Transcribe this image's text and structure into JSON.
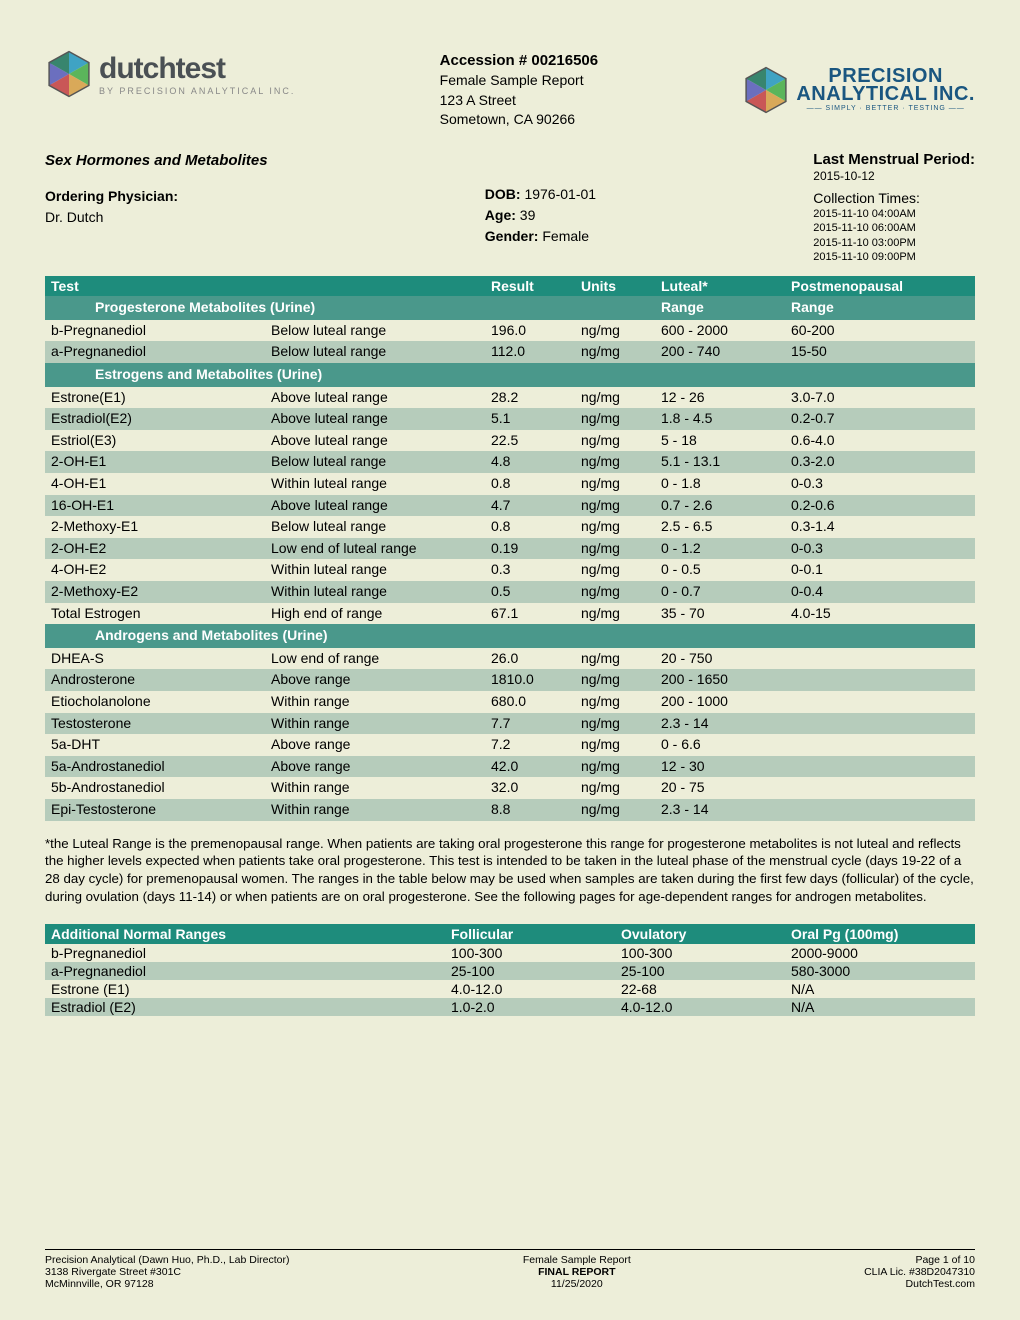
{
  "header": {
    "accession": "Accession # 00216506",
    "report_type": "Female Sample Report",
    "address1": "123 A Street",
    "address2": "Sometown, CA 90266"
  },
  "info": {
    "section_title": "Sex Hormones and Metabolites",
    "physician_label": "Ordering Physician:",
    "physician_name": "Dr. Dutch",
    "dob_label": "DOB:",
    "dob": "1976-01-01",
    "age_label": "Age:",
    "age": "39",
    "gender_label": "Gender:",
    "gender": "Female",
    "lmp_label": "Last Menstrual Period:",
    "lmp_date": "2015-10-12",
    "ct_label": "Collection Times:",
    "ct": [
      "2015-11-10 04:00AM",
      "2015-11-10 06:00AM",
      "2015-11-10 03:00PM",
      "2015-11-10 09:00PM"
    ]
  },
  "table_headers": {
    "test": "Test",
    "result": "Result",
    "units": "Units",
    "range1": "Luteal*",
    "range2": "Postmenopausal"
  },
  "sections": [
    {
      "title": "Progesterone Metabolites (Urine)",
      "sub1": "Range",
      "sub2": "Range",
      "rows": [
        {
          "test": "b-Pregnanediol",
          "status": "Below luteal range",
          "result": "196.0",
          "units": "ng/mg",
          "r1": "600 - 2000",
          "r2": "60-200"
        },
        {
          "test": "a-Pregnanediol",
          "status": "Below luteal range",
          "result": "112.0",
          "units": "ng/mg",
          "r1": "200 - 740",
          "r2": "15-50"
        }
      ]
    },
    {
      "title": "Estrogens and Metabolites (Urine)",
      "rows": [
        {
          "test": "Estrone(E1)",
          "status": "Above luteal range",
          "result": "28.2",
          "units": "ng/mg",
          "r1": "12 - 26",
          "r2": "3.0-7.0"
        },
        {
          "test": "Estradiol(E2)",
          "status": "Above luteal range",
          "result": "5.1",
          "units": "ng/mg",
          "r1": "1.8 - 4.5",
          "r2": "0.2-0.7"
        },
        {
          "test": "Estriol(E3)",
          "status": "Above luteal range",
          "result": "22.5",
          "units": "ng/mg",
          "r1": "5 - 18",
          "r2": "0.6-4.0"
        },
        {
          "test": "2-OH-E1",
          "status": "Below luteal range",
          "result": "4.8",
          "units": "ng/mg",
          "r1": "5.1 - 13.1",
          "r2": "0.3-2.0"
        },
        {
          "test": "4-OH-E1",
          "status": "Within luteal range",
          "result": "0.8",
          "units": "ng/mg",
          "r1": "0 - 1.8",
          "r2": "0-0.3"
        },
        {
          "test": "16-OH-E1",
          "status": "Above luteal range",
          "result": "4.7",
          "units": "ng/mg",
          "r1": "0.7 - 2.6",
          "r2": "0.2-0.6"
        },
        {
          "test": "2-Methoxy-E1",
          "status": "Below luteal range",
          "result": "0.8",
          "units": "ng/mg",
          "r1": "2.5 - 6.5",
          "r2": "0.3-1.4"
        },
        {
          "test": "2-OH-E2",
          "status": "Low end of luteal range",
          "result": "0.19",
          "units": "ng/mg",
          "r1": "0 - 1.2",
          "r2": "0-0.3"
        },
        {
          "test": "4-OH-E2",
          "status": "Within luteal range",
          "result": "0.3",
          "units": "ng/mg",
          "r1": "0 - 0.5",
          "r2": "0-0.1"
        },
        {
          "test": "2-Methoxy-E2",
          "status": "Within luteal range",
          "result": "0.5",
          "units": "ng/mg",
          "r1": "0 - 0.7",
          "r2": "0-0.4"
        },
        {
          "test": "Total Estrogen",
          "status": "High end of range",
          "result": "67.1",
          "units": "ng/mg",
          "r1": "35 - 70",
          "r2": "4.0-15"
        }
      ]
    },
    {
      "title": "Androgens and Metabolites (Urine)",
      "rows": [
        {
          "test": "DHEA-S",
          "status": "Low end of range",
          "result": "26.0",
          "units": "ng/mg",
          "r1": "20 - 750",
          "r2": ""
        },
        {
          "test": "Androsterone",
          "status": "Above range",
          "result": "1810.0",
          "units": "ng/mg",
          "r1": "200 - 1650",
          "r2": ""
        },
        {
          "test": "Etiocholanolone",
          "status": "Within range",
          "result": "680.0",
          "units": "ng/mg",
          "r1": "200 - 1000",
          "r2": ""
        },
        {
          "test": "Testosterone",
          "status": "Within range",
          "result": "7.7",
          "units": "ng/mg",
          "r1": "2.3 - 14",
          "r2": ""
        },
        {
          "test": "5a-DHT",
          "status": "Above range",
          "result": "7.2",
          "units": "ng/mg",
          "r1": "0 - 6.6",
          "r2": ""
        },
        {
          "test": "5a-Androstanediol",
          "status": "Above range",
          "result": "42.0",
          "units": "ng/mg",
          "r1": "12 - 30",
          "r2": ""
        },
        {
          "test": "5b-Androstanediol",
          "status": "Within range",
          "result": "32.0",
          "units": "ng/mg",
          "r1": "20 - 75",
          "r2": ""
        },
        {
          "test": "Epi-Testosterone",
          "status": "Within range",
          "result": "8.8",
          "units": "ng/mg",
          "r1": "2.3 - 14",
          "r2": ""
        }
      ]
    }
  ],
  "note": "*the Luteal Range is the premenopausal range. When patients are taking oral progesterone this range for progesterone metabolites is not luteal and reflects the higher levels expected when patients take oral progesterone. This test is intended to be taken in the luteal phase of the menstrual cycle (days 19-22 of a 28 day cycle) for premenopausal women. The ranges in the table below may be used when samples are taken during the first few days (follicular) of the cycle, during ovulation (days 11-14) or when patients are on oral progesterone. See the following pages for age-dependent ranges for androgen metabolites.",
  "additional": {
    "headers": [
      "Additional Normal Ranges",
      "Follicular",
      "Ovulatory",
      "Oral Pg (100mg)"
    ],
    "rows": [
      {
        "name": "b-Pregnanediol",
        "foll": "100-300",
        "ovu": "100-300",
        "oral": "2000-9000"
      },
      {
        "name": "a-Pregnanediol",
        "foll": "25-100",
        "ovu": "25-100",
        "oral": "580-3000"
      },
      {
        "name": "Estrone (E1)",
        "foll": "4.0-12.0",
        "ovu": "22-68",
        "oral": "N/A"
      },
      {
        "name": "Estradiol (E2)",
        "foll": "1.0-2.0",
        "ovu": "4.0-12.0",
        "oral": "N/A"
      }
    ]
  },
  "footer": {
    "l1": "Precision Analytical (Dawn Huo, Ph.D., Lab Director)",
    "l2": "3138 Rivergate Street #301C",
    "l3": "McMinnville, OR 97128",
    "c1": "Female Sample Report",
    "c2": "FINAL REPORT",
    "c3": "11/25/2020",
    "r1": "Page 1 of 10",
    "r2": "CLIA Lic. #38D2047310",
    "r3": "DutchTest.com"
  },
  "colors": {
    "teal_dark": "#1e8c7c",
    "teal_mid": "#4a988b",
    "row_alt": "#b6ccbb",
    "bg": "#edeed9"
  }
}
